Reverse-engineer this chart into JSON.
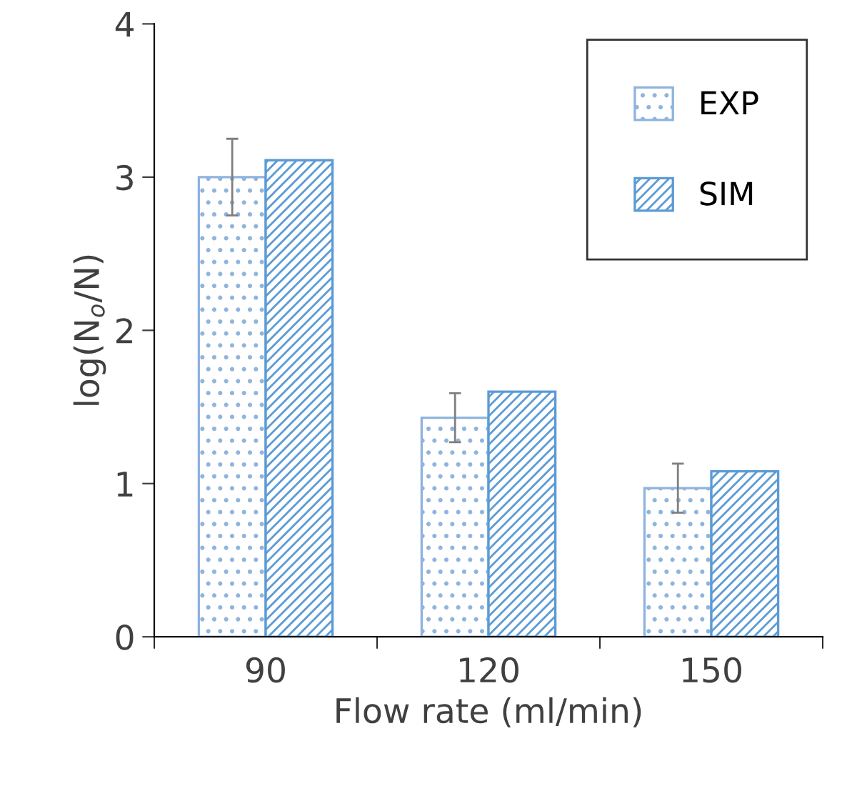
{
  "chart_data": {
    "type": "bar",
    "xlabel": "Flow rate (ml/min)",
    "ylabel": "log(N$_{o}$/N)",
    "categories": [
      "90",
      "120",
      "150"
    ],
    "series": [
      {
        "name": "EXP",
        "color": "#8fb4de",
        "values": [
          3.0,
          1.43,
          0.97
        ],
        "errors": [
          0.25,
          0.16,
          0.16
        ]
      },
      {
        "name": "SIM",
        "color": "#5b9bd5",
        "values": [
          3.11,
          1.6,
          1.08
        ]
      }
    ],
    "ylim": [
      0,
      4
    ],
    "yticks": [
      0,
      1,
      2,
      3,
      4
    ],
    "grid": false,
    "legend": "top right"
  }
}
